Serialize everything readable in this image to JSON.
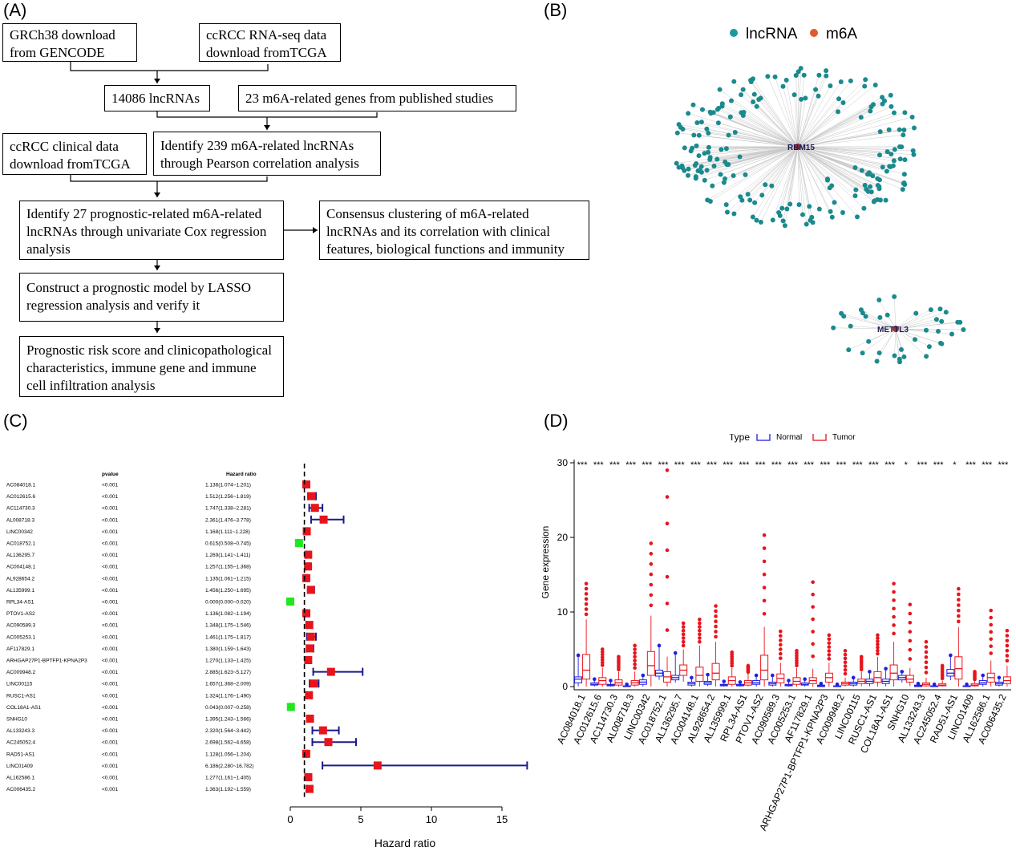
{
  "panels": {
    "a": "(A)",
    "b": "(B)",
    "c": "(C)",
    "d": "(D)"
  },
  "flow": {
    "grch38": [
      "GRCh38 download",
      "from GENCODE"
    ],
    "rnaseq": [
      "ccRCC RNA-seq data",
      "download fromTCGA"
    ],
    "lnc": "14086 lncRNAs",
    "m6agenes": "23 m6A-related genes from published studies",
    "clinical": [
      "ccRCC clinical data",
      "download fromTCGA"
    ],
    "identify239": [
      "Identify 239 m6A-related lncRNAs",
      "through Pearson correlation analysis"
    ],
    "identify27": [
      "Identify 27 prognostic-related m6A-related",
      "lncRNAs through univariate Cox regression",
      "analysis"
    ],
    "consensus": [
      "Consensus clustering of m6A-related",
      "lncRNAs and its correlation with clinical",
      "features, biological functions and immunity"
    ],
    "construct": [
      "Construct a prognostic model by LASSO",
      "regression analysis and verify it"
    ],
    "prognostic": [
      "Prognostic risk score and clinicopathological",
      "characteristics, immune gene and immune",
      "cell infiltration analysis"
    ]
  },
  "network": {
    "legend": [
      {
        "label": "lncRNA",
        "color": "#1a9aa0"
      },
      {
        "label": "m6A",
        "color": "#e05a30"
      }
    ],
    "hubs": [
      "RBM15",
      "METTL3"
    ],
    "node_color": "#1a8a8e",
    "hub_color": "#a0303a"
  },
  "forest": {
    "col_pvalue": "pvalue",
    "col_hr": "Hazard ratio",
    "xlabel": "Hazard ratio",
    "ticks": [
      "0",
      "5",
      "10",
      "15"
    ],
    "rows": [
      {
        "name": "AC084018.1",
        "p": "<0.001",
        "hr_text": "1.136(1.074~1.201)",
        "hr": 1.136,
        "lo": 1.074,
        "hi": 1.201
      },
      {
        "name": "AC012615.6",
        "p": "<0.001",
        "hr_text": "1.512(1.256~1.819)",
        "hr": 1.512,
        "lo": 1.256,
        "hi": 1.819
      },
      {
        "name": "AC114730.3",
        "p": "<0.001",
        "hr_text": "1.747(1.338~2.281)",
        "hr": 1.747,
        "lo": 1.338,
        "hi": 2.281
      },
      {
        "name": "AL008718.3",
        "p": "<0.001",
        "hr_text": "2.361(1.476~3.778)",
        "hr": 2.361,
        "lo": 1.476,
        "hi": 3.778
      },
      {
        "name": "LINC00342",
        "p": "<0.001",
        "hr_text": "1.168(1.111~1.228)",
        "hr": 1.168,
        "lo": 1.111,
        "hi": 1.228
      },
      {
        "name": "AC018752.1",
        "p": "<0.001",
        "hr_text": "0.615(0.508~0.745)",
        "hr": 0.615,
        "lo": 0.508,
        "hi": 0.745
      },
      {
        "name": "AL136295.7",
        "p": "<0.001",
        "hr_text": "1.269(1.141~1.411)",
        "hr": 1.269,
        "lo": 1.141,
        "hi": 1.411
      },
      {
        "name": "AC004148.1",
        "p": "<0.001",
        "hr_text": "1.257(1.155~1.368)",
        "hr": 1.257,
        "lo": 1.155,
        "hi": 1.368
      },
      {
        "name": "AL928654.2",
        "p": "<0.001",
        "hr_text": "1.135(1.061~1.215)",
        "hr": 1.135,
        "lo": 1.061,
        "hi": 1.215
      },
      {
        "name": "AL135999.1",
        "p": "<0.001",
        "hr_text": "1.456(1.250~1.695)",
        "hr": 1.456,
        "lo": 1.25,
        "hi": 1.695
      },
      {
        "name": "RPL34-AS1",
        "p": "<0.001",
        "hr_text": "0.000(0.000~0.020)",
        "hr": 0.0,
        "lo": 0.0,
        "hi": 0.02
      },
      {
        "name": "PTOV1-AS2",
        "p": "<0.001",
        "hr_text": "1.136(1.082~1.194)",
        "hr": 1.136,
        "lo": 1.082,
        "hi": 1.194
      },
      {
        "name": "AC090589.3",
        "p": "<0.001",
        "hr_text": "1.348(1.175~1.546)",
        "hr": 1.348,
        "lo": 1.175,
        "hi": 1.546
      },
      {
        "name": "AC005253.1",
        "p": "<0.001",
        "hr_text": "1.461(1.175~1.817)",
        "hr": 1.461,
        "lo": 1.175,
        "hi": 1.817
      },
      {
        "name": "AF117829.1",
        "p": "<0.001",
        "hr_text": "1.380(1.159~1.643)",
        "hr": 1.38,
        "lo": 1.159,
        "hi": 1.643
      },
      {
        "name": "ARHGAP27P1-BPTFP1-KPNA2P3",
        "p": "<0.001",
        "hr_text": "1.270(1.133~1.425)",
        "hr": 1.27,
        "lo": 1.133,
        "hi": 1.425
      },
      {
        "name": "AC009948.2",
        "p": "<0.001",
        "hr_text": "2.885(1.623~5.127)",
        "hr": 2.885,
        "lo": 1.623,
        "hi": 5.127
      },
      {
        "name": "LINC00115",
        "p": "<0.001",
        "hr_text": "1.657(1.368~2.009)",
        "hr": 1.657,
        "lo": 1.368,
        "hi": 2.009
      },
      {
        "name": "RUSC1-AS1",
        "p": "<0.001",
        "hr_text": "1.324(1.176~1.490)",
        "hr": 1.324,
        "lo": 1.176,
        "hi": 1.49
      },
      {
        "name": "COL18A1-AS1",
        "p": "<0.001",
        "hr_text": "0.043(0.007~0.258)",
        "hr": 0.043,
        "lo": 0.007,
        "hi": 0.258
      },
      {
        "name": "SNHG10",
        "p": "<0.001",
        "hr_text": "1.395(1.243~1.566)",
        "hr": 1.395,
        "lo": 1.243,
        "hi": 1.566
      },
      {
        "name": "AL133243.3",
        "p": "<0.001",
        "hr_text": "2.320(1.564~3.442)",
        "hr": 2.32,
        "lo": 1.564,
        "hi": 3.442
      },
      {
        "name": "AC245052.4",
        "p": "<0.001",
        "hr_text": "2.698(1.562~4.658)",
        "hr": 2.698,
        "lo": 1.562,
        "hi": 4.658
      },
      {
        "name": "RAD51-AS1",
        "p": "<0.001",
        "hr_text": "1.128(1.056~1.204)",
        "hr": 1.128,
        "lo": 1.056,
        "hi": 1.204
      },
      {
        "name": "LINC01409",
        "p": "<0.001",
        "hr_text": "6.186(2.280~16.782)",
        "hr": 6.186,
        "lo": 2.28,
        "hi": 16.782
      },
      {
        "name": "AL162586.1",
        "p": "<0.001",
        "hr_text": "1.277(1.161~1.405)",
        "hr": 1.277,
        "lo": 1.161,
        "hi": 1.405
      },
      {
        "name": "AC006435.2",
        "p": "<0.001",
        "hr_text": "1.363(1.192~1.559)",
        "hr": 1.363,
        "lo": 1.192,
        "hi": 1.559
      }
    ]
  },
  "chart_data": [
    {
      "type": "scatter",
      "chart": "forest",
      "x_axis": {
        "label": "Hazard ratio",
        "ticks": [
          0,
          5,
          10,
          15
        ],
        "range": [
          0,
          17
        ]
      },
      "reference_line": 1,
      "points": [
        {
          "gene": "AC084018.1",
          "hr": 1.136,
          "lo": 1.074,
          "hi": 1.201
        },
        {
          "gene": "AC012615.6",
          "hr": 1.512,
          "lo": 1.256,
          "hi": 1.819
        },
        {
          "gene": "AC114730.3",
          "hr": 1.747,
          "lo": 1.338,
          "hi": 2.281
        },
        {
          "gene": "AL008718.3",
          "hr": 2.361,
          "lo": 1.476,
          "hi": 3.778
        },
        {
          "gene": "LINC00342",
          "hr": 1.168,
          "lo": 1.111,
          "hi": 1.228
        },
        {
          "gene": "AC018752.1",
          "hr": 0.615,
          "lo": 0.508,
          "hi": 0.745
        },
        {
          "gene": "AL136295.7",
          "hr": 1.269,
          "lo": 1.141,
          "hi": 1.411
        },
        {
          "gene": "AC004148.1",
          "hr": 1.257,
          "lo": 1.155,
          "hi": 1.368
        },
        {
          "gene": "AL928654.2",
          "hr": 1.135,
          "lo": 1.061,
          "hi": 1.215
        },
        {
          "gene": "AL135999.1",
          "hr": 1.456,
          "lo": 1.25,
          "hi": 1.695
        },
        {
          "gene": "RPL34-AS1",
          "hr": 0.0,
          "lo": 0.0,
          "hi": 0.02
        },
        {
          "gene": "PTOV1-AS2",
          "hr": 1.136,
          "lo": 1.082,
          "hi": 1.194
        },
        {
          "gene": "AC090589.3",
          "hr": 1.348,
          "lo": 1.175,
          "hi": 1.546
        },
        {
          "gene": "AC005253.1",
          "hr": 1.461,
          "lo": 1.175,
          "hi": 1.817
        },
        {
          "gene": "AF117829.1",
          "hr": 1.38,
          "lo": 1.159,
          "hi": 1.643
        },
        {
          "gene": "ARHGAP27P1-BPTFP1-KPNA2P3",
          "hr": 1.27,
          "lo": 1.133,
          "hi": 1.425
        },
        {
          "gene": "AC009948.2",
          "hr": 2.885,
          "lo": 1.623,
          "hi": 5.127
        },
        {
          "gene": "LINC00115",
          "hr": 1.657,
          "lo": 1.368,
          "hi": 2.009
        },
        {
          "gene": "RUSC1-AS1",
          "hr": 1.324,
          "lo": 1.176,
          "hi": 1.49
        },
        {
          "gene": "COL18A1-AS1",
          "hr": 0.043,
          "lo": 0.007,
          "hi": 0.258
        },
        {
          "gene": "SNHG10",
          "hr": 1.395,
          "lo": 1.243,
          "hi": 1.566
        },
        {
          "gene": "AL133243.3",
          "hr": 2.32,
          "lo": 1.564,
          "hi": 3.442
        },
        {
          "gene": "AC245052.4",
          "hr": 2.698,
          "lo": 1.562,
          "hi": 4.658
        },
        {
          "gene": "RAD51-AS1",
          "hr": 1.128,
          "lo": 1.056,
          "hi": 1.204
        },
        {
          "gene": "LINC01409",
          "hr": 6.186,
          "lo": 2.28,
          "hi": 16.782
        },
        {
          "gene": "AL162586.1",
          "hr": 1.277,
          "lo": 1.161,
          "hi": 1.405
        },
        {
          "gene": "AC006435.2",
          "hr": 1.363,
          "lo": 1.192,
          "hi": 1.559
        }
      ],
      "colors": {
        "risk": "#e8141c",
        "protective": "#1ee81e",
        "ci": "#1a1a8c"
      }
    },
    {
      "type": "box",
      "chart": "boxplot",
      "legend": {
        "title": "Type",
        "entries": [
          {
            "name": "Normal",
            "color": "#1f1fe0"
          },
          {
            "name": "Tumor",
            "color": "#e8141c"
          }
        ],
        "placement": "top"
      },
      "ylabel": "Gene expression",
      "y_ticks": [
        0,
        10,
        20,
        30
      ],
      "ylim": [
        0,
        30
      ],
      "categories": [
        "AC084018.1",
        "AC012615.6",
        "AC114730.3",
        "AL008718.3",
        "LINC00342",
        "AC018752.1",
        "AL136295.7",
        "AC004148.1",
        "AL928654.2",
        "AL135999.1",
        "RPL34-AS1",
        "PTOV1-AS2",
        "AC090589.3",
        "AC005253.1",
        "AF117829.1",
        "ARHGAP27P1-BPTFP1-KPNA2P3",
        "AC009948.2",
        "LINC00115",
        "RUSC1-AS1",
        "COL18A1-AS1",
        "SNHG10",
        "AL133243.3",
        "AC245052.4",
        "RAD51-AS1",
        "LINC01409",
        "AL162586.1",
        "AC006435.2"
      ],
      "significance": [
        "***",
        "***",
        "***",
        "***",
        "***",
        "***",
        "***",
        "***",
        "***",
        "***",
        "***",
        "***",
        "***",
        "***",
        "***",
        "***",
        "***",
        "***",
        "***",
        "***",
        "*",
        "***",
        "***",
        "*",
        "***",
        "***",
        "***"
      ],
      "normal": [
        {
          "q1": 0.5,
          "med": 1.0,
          "q3": 1.3,
          "max": 4.2
        },
        {
          "q1": 0.2,
          "med": 0.3,
          "q3": 0.5,
          "max": 1.0
        },
        {
          "q1": 0.1,
          "med": 0.2,
          "q3": 0.3,
          "max": 0.8
        },
        {
          "q1": 0.0,
          "med": 0.05,
          "q3": 0.1,
          "max": 0.3
        },
        {
          "q1": 0.3,
          "med": 0.6,
          "q3": 0.9,
          "max": 1.5
        },
        {
          "q1": 1.4,
          "med": 1.8,
          "q3": 2.2,
          "max": 5.5
        },
        {
          "q1": 0.9,
          "med": 1.2,
          "q3": 1.5,
          "max": 4.5
        },
        {
          "q1": 0.2,
          "med": 0.4,
          "q3": 0.6,
          "max": 1.2
        },
        {
          "q1": 0.3,
          "med": 0.5,
          "q3": 0.7,
          "max": 1.6
        },
        {
          "q1": 0.1,
          "med": 0.2,
          "q3": 0.3,
          "max": 0.7
        },
        {
          "q1": 0.1,
          "med": 0.2,
          "q3": 0.3,
          "max": 0.6
        },
        {
          "q1": 0.3,
          "med": 0.5,
          "q3": 0.8,
          "max": 1.5
        },
        {
          "q1": 0.2,
          "med": 0.4,
          "q3": 0.6,
          "max": 1.5
        },
        {
          "q1": 0.1,
          "med": 0.2,
          "q3": 0.3,
          "max": 0.8
        },
        {
          "q1": 0.2,
          "med": 0.3,
          "q3": 0.5,
          "max": 1.0
        },
        {
          "q1": 0.0,
          "med": 0.1,
          "q3": 0.2,
          "max": 0.4
        },
        {
          "q1": 0.0,
          "med": 0.05,
          "q3": 0.1,
          "max": 0.3
        },
        {
          "q1": 0.2,
          "med": 0.4,
          "q3": 0.6,
          "max": 1.2
        },
        {
          "q1": 0.4,
          "med": 0.7,
          "q3": 1.0,
          "max": 2.0
        },
        {
          "q1": 0.4,
          "med": 0.7,
          "q3": 1.0,
          "max": 2.4
        },
        {
          "q1": 0.9,
          "med": 1.2,
          "q3": 1.5,
          "max": 2.0
        },
        {
          "q1": 0.0,
          "med": 0.1,
          "q3": 0.2,
          "max": 0.4
        },
        {
          "q1": 0.0,
          "med": 0.05,
          "q3": 0.1,
          "max": 0.3
        },
        {
          "q1": 1.4,
          "med": 1.8,
          "q3": 2.3,
          "max": 4.2
        },
        {
          "q1": 0.0,
          "med": 0.05,
          "q3": 0.1,
          "max": 0.3
        },
        {
          "q1": 0.3,
          "med": 0.5,
          "q3": 0.8,
          "max": 1.5
        },
        {
          "q1": 0.2,
          "med": 0.4,
          "q3": 0.6,
          "max": 1.2
        }
      ],
      "tumor": [
        {
          "q1": 1.0,
          "med": 2.2,
          "q3": 4.3,
          "max": 9.0
        },
        {
          "q1": 0.3,
          "med": 0.8,
          "q3": 1.2,
          "max": 2.5
        },
        {
          "q1": 0.2,
          "med": 0.5,
          "q3": 0.9,
          "max": 2.0
        },
        {
          "q1": 0.2,
          "med": 0.5,
          "q3": 0.8,
          "max": 2.0
        },
        {
          "q1": 1.5,
          "med": 2.8,
          "q3": 4.7,
          "max": 9.5
        },
        {
          "q1": 0.6,
          "med": 1.3,
          "q3": 2.0,
          "max": 4.0
        },
        {
          "q1": 1.5,
          "med": 2.2,
          "q3": 2.9,
          "max": 5.0
        },
        {
          "q1": 0.7,
          "med": 1.5,
          "q3": 2.6,
          "max": 5.5
        },
        {
          "q1": 0.9,
          "med": 1.8,
          "q3": 3.1,
          "max": 6.0
        },
        {
          "q1": 0.3,
          "med": 0.8,
          "q3": 1.3,
          "max": 2.5
        },
        {
          "q1": 0.2,
          "med": 0.5,
          "q3": 0.8,
          "max": 1.8
        },
        {
          "q1": 0.9,
          "med": 2.2,
          "q3": 4.2,
          "max": 8.0
        },
        {
          "q1": 0.5,
          "med": 1.1,
          "q3": 1.7,
          "max": 3.2
        },
        {
          "q1": 0.3,
          "med": 0.7,
          "q3": 1.2,
          "max": 2.5
        },
        {
          "q1": 0.4,
          "med": 0.8,
          "q3": 1.2,
          "max": 2.4
        },
        {
          "q1": 0.6,
          "med": 1.2,
          "q3": 1.8,
          "max": 3.2
        },
        {
          "q1": 0.2,
          "med": 0.4,
          "q3": 0.6,
          "max": 1.2
        },
        {
          "q1": 0.4,
          "med": 0.7,
          "q3": 1.0,
          "max": 2.0
        },
        {
          "q1": 0.6,
          "med": 1.2,
          "q3": 2.0,
          "max": 4.0
        },
        {
          "q1": 0.9,
          "med": 1.8,
          "q3": 2.9,
          "max": 6.0
        },
        {
          "q1": 0.6,
          "med": 1.0,
          "q3": 1.5,
          "max": 2.5
        },
        {
          "q1": 0.1,
          "med": 0.3,
          "q3": 0.5,
          "max": 1.2
        },
        {
          "q1": 0.1,
          "med": 0.2,
          "q3": 0.4,
          "max": 0.8
        },
        {
          "q1": 1.0,
          "med": 2.4,
          "q3": 4.0,
          "max": 8.0
        },
        {
          "q1": 0.1,
          "med": 0.2,
          "q3": 0.4,
          "max": 0.8
        },
        {
          "q1": 0.6,
          "med": 1.2,
          "q3": 1.8,
          "max": 3.5
        },
        {
          "q1": 0.4,
          "med": 0.8,
          "q3": 1.3,
          "max": 2.8
        }
      ],
      "outliers_tumor_top": [
        13.8,
        5.0,
        4.0,
        5.5,
        19.2,
        29.0,
        8.5,
        9.0,
        10.8,
        4.6,
        2.8,
        20.3,
        7.4,
        4.8,
        14.0,
        6.9,
        4.8,
        4.0,
        6.9,
        13.8,
        11.0,
        6.0,
        2.8,
        13.1,
        2.0,
        10.2,
        7.5
      ]
    }
  ]
}
